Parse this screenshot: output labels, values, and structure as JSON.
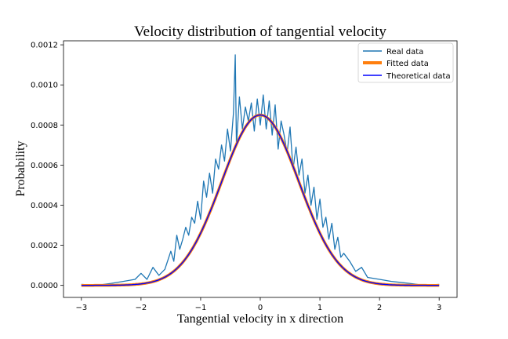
{
  "chart_data": {
    "type": "line",
    "title": "Velocity distribution of tangential velocity",
    "xlabel": "Tangential velocity in x direction",
    "ylabel": "Probability",
    "xlim": [
      -3.3,
      3.3
    ],
    "ylim": [
      -6e-05,
      0.00122
    ],
    "xticks": [
      -3,
      -2,
      -1,
      0,
      1,
      2,
      3
    ],
    "xtick_labels": [
      "−3",
      "−2",
      "−1",
      "0",
      "1",
      "2",
      "3"
    ],
    "yticks": [
      0.0,
      0.0002,
      0.0004,
      0.0006,
      0.0008,
      0.001,
      0.0012
    ],
    "ytick_labels": [
      "0.0000",
      "0.0002",
      "0.0004",
      "0.0006",
      "0.0008",
      "0.0010",
      "0.0012"
    ],
    "grid": false,
    "legend_position": "top-right",
    "series": [
      {
        "name": "Real data",
        "color": "#1f77b4",
        "x": [
          -3.0,
          -2.75,
          -2.5,
          -2.3,
          -2.1,
          -2.0,
          -1.9,
          -1.8,
          -1.7,
          -1.6,
          -1.5,
          -1.45,
          -1.4,
          -1.35,
          -1.3,
          -1.25,
          -1.2,
          -1.15,
          -1.1,
          -1.05,
          -1.0,
          -0.95,
          -0.9,
          -0.85,
          -0.8,
          -0.75,
          -0.7,
          -0.65,
          -0.6,
          -0.55,
          -0.5,
          -0.45,
          -0.42,
          -0.4,
          -0.35,
          -0.3,
          -0.25,
          -0.2,
          -0.15,
          -0.1,
          -0.05,
          0.0,
          0.05,
          0.1,
          0.15,
          0.2,
          0.25,
          0.3,
          0.35,
          0.4,
          0.45,
          0.5,
          0.55,
          0.6,
          0.65,
          0.7,
          0.75,
          0.8,
          0.85,
          0.9,
          0.95,
          1.0,
          1.05,
          1.1,
          1.15,
          1.2,
          1.25,
          1.3,
          1.35,
          1.4,
          1.5,
          1.6,
          1.7,
          1.8,
          2.0,
          2.2,
          2.5,
          2.75,
          3.0
        ],
        "y": [
          5e-06,
          0.0,
          1e-05,
          2e-05,
          3e-05,
          6e-05,
          3e-05,
          9e-05,
          5e-05,
          8e-05,
          0.00017,
          0.00012,
          0.00025,
          0.00018,
          0.00023,
          0.00029,
          0.00025,
          0.00034,
          0.00031,
          0.00042,
          0.00033,
          0.00052,
          0.00044,
          0.00056,
          0.00046,
          0.00063,
          0.00058,
          0.0007,
          0.00062,
          0.00078,
          0.00067,
          0.00086,
          0.00115,
          0.0007,
          0.00094,
          0.00078,
          0.00089,
          0.00082,
          0.00091,
          0.00077,
          0.00093,
          0.0008,
          0.00095,
          0.00078,
          0.00092,
          0.00075,
          0.0009,
          0.00068,
          0.00082,
          0.00075,
          0.00066,
          0.00079,
          0.00058,
          0.00069,
          0.00055,
          0.00063,
          0.00046,
          0.00055,
          0.0004,
          0.00049,
          0.00033,
          0.00043,
          0.00029,
          0.00034,
          0.00023,
          0.00031,
          0.00018,
          0.00024,
          0.00014,
          0.00016,
          0.00012,
          7e-05,
          9e-05,
          4e-05,
          3e-05,
          2e-05,
          1e-05,
          0.0,
          5e-06
        ]
      },
      {
        "name": "Fitted data",
        "color": "#ff7f0e",
        "model": "gaussian",
        "mean": 0.0,
        "sigma": 0.65,
        "amplitude": 0.00085
      },
      {
        "name": "Theoretical data",
        "color": "#0000ff",
        "model": "gaussian",
        "mean": 0.0,
        "sigma": 0.65,
        "amplitude": 0.00085
      }
    ]
  }
}
